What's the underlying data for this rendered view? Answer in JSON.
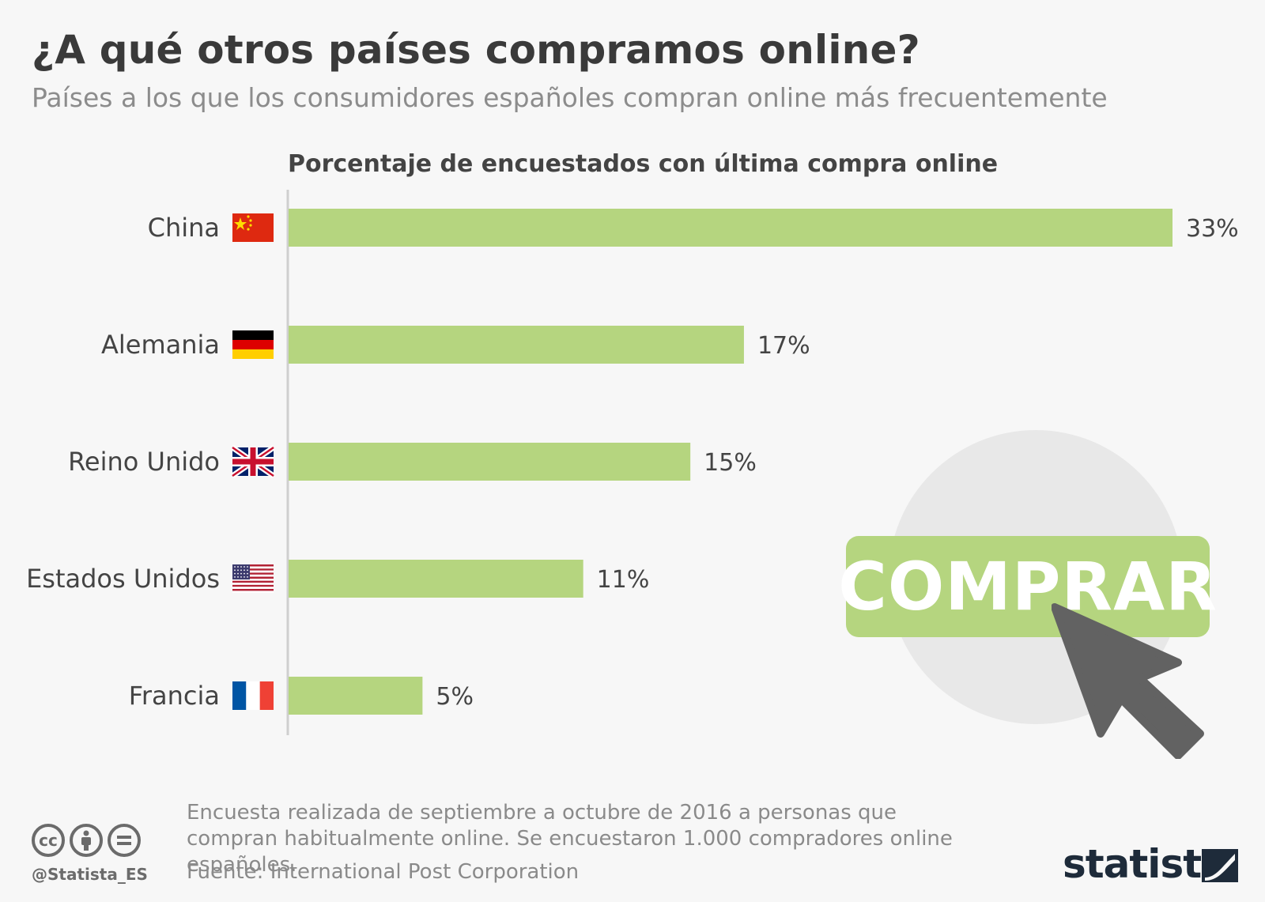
{
  "header": {
    "title": "¿A qué otros países compramos online?",
    "subtitle": "Países a los que los consumidores españoles compran online más frecuentemente"
  },
  "chart_data": {
    "type": "bar",
    "orientation": "horizontal",
    "title": "Porcentaje de encuestados con última compra online",
    "categories": [
      "China",
      "Alemania",
      "Reino Unido",
      "Estados Unidos",
      "Francia"
    ],
    "flag_icons": [
      "flag-china-icon",
      "flag-germany-icon",
      "flag-uk-icon",
      "flag-usa-icon",
      "flag-france-icon"
    ],
    "values": [
      33,
      17,
      15,
      11,
      5
    ],
    "value_labels": [
      "33%",
      "17%",
      "15%",
      "11%",
      "5%"
    ],
    "xlim": [
      0,
      33
    ],
    "grid": false,
    "bar_color": "#b5d57f"
  },
  "promo": {
    "button_label": "COMPRAR",
    "icon": "cursor-arrow-icon",
    "button_color": "#b5d57f"
  },
  "footer": {
    "note": "Encuesta realizada de septiembre a octubre de 2016 a personas que compran habitualmente online. Se encuestaron 1.000 compradores online españoles.",
    "source": "Fuente: International Post Corporation",
    "handle": "@Statista_ES",
    "brand": "statista",
    "license_icons": [
      "cc-icon",
      "attribution-icon",
      "no-derivatives-icon"
    ]
  }
}
